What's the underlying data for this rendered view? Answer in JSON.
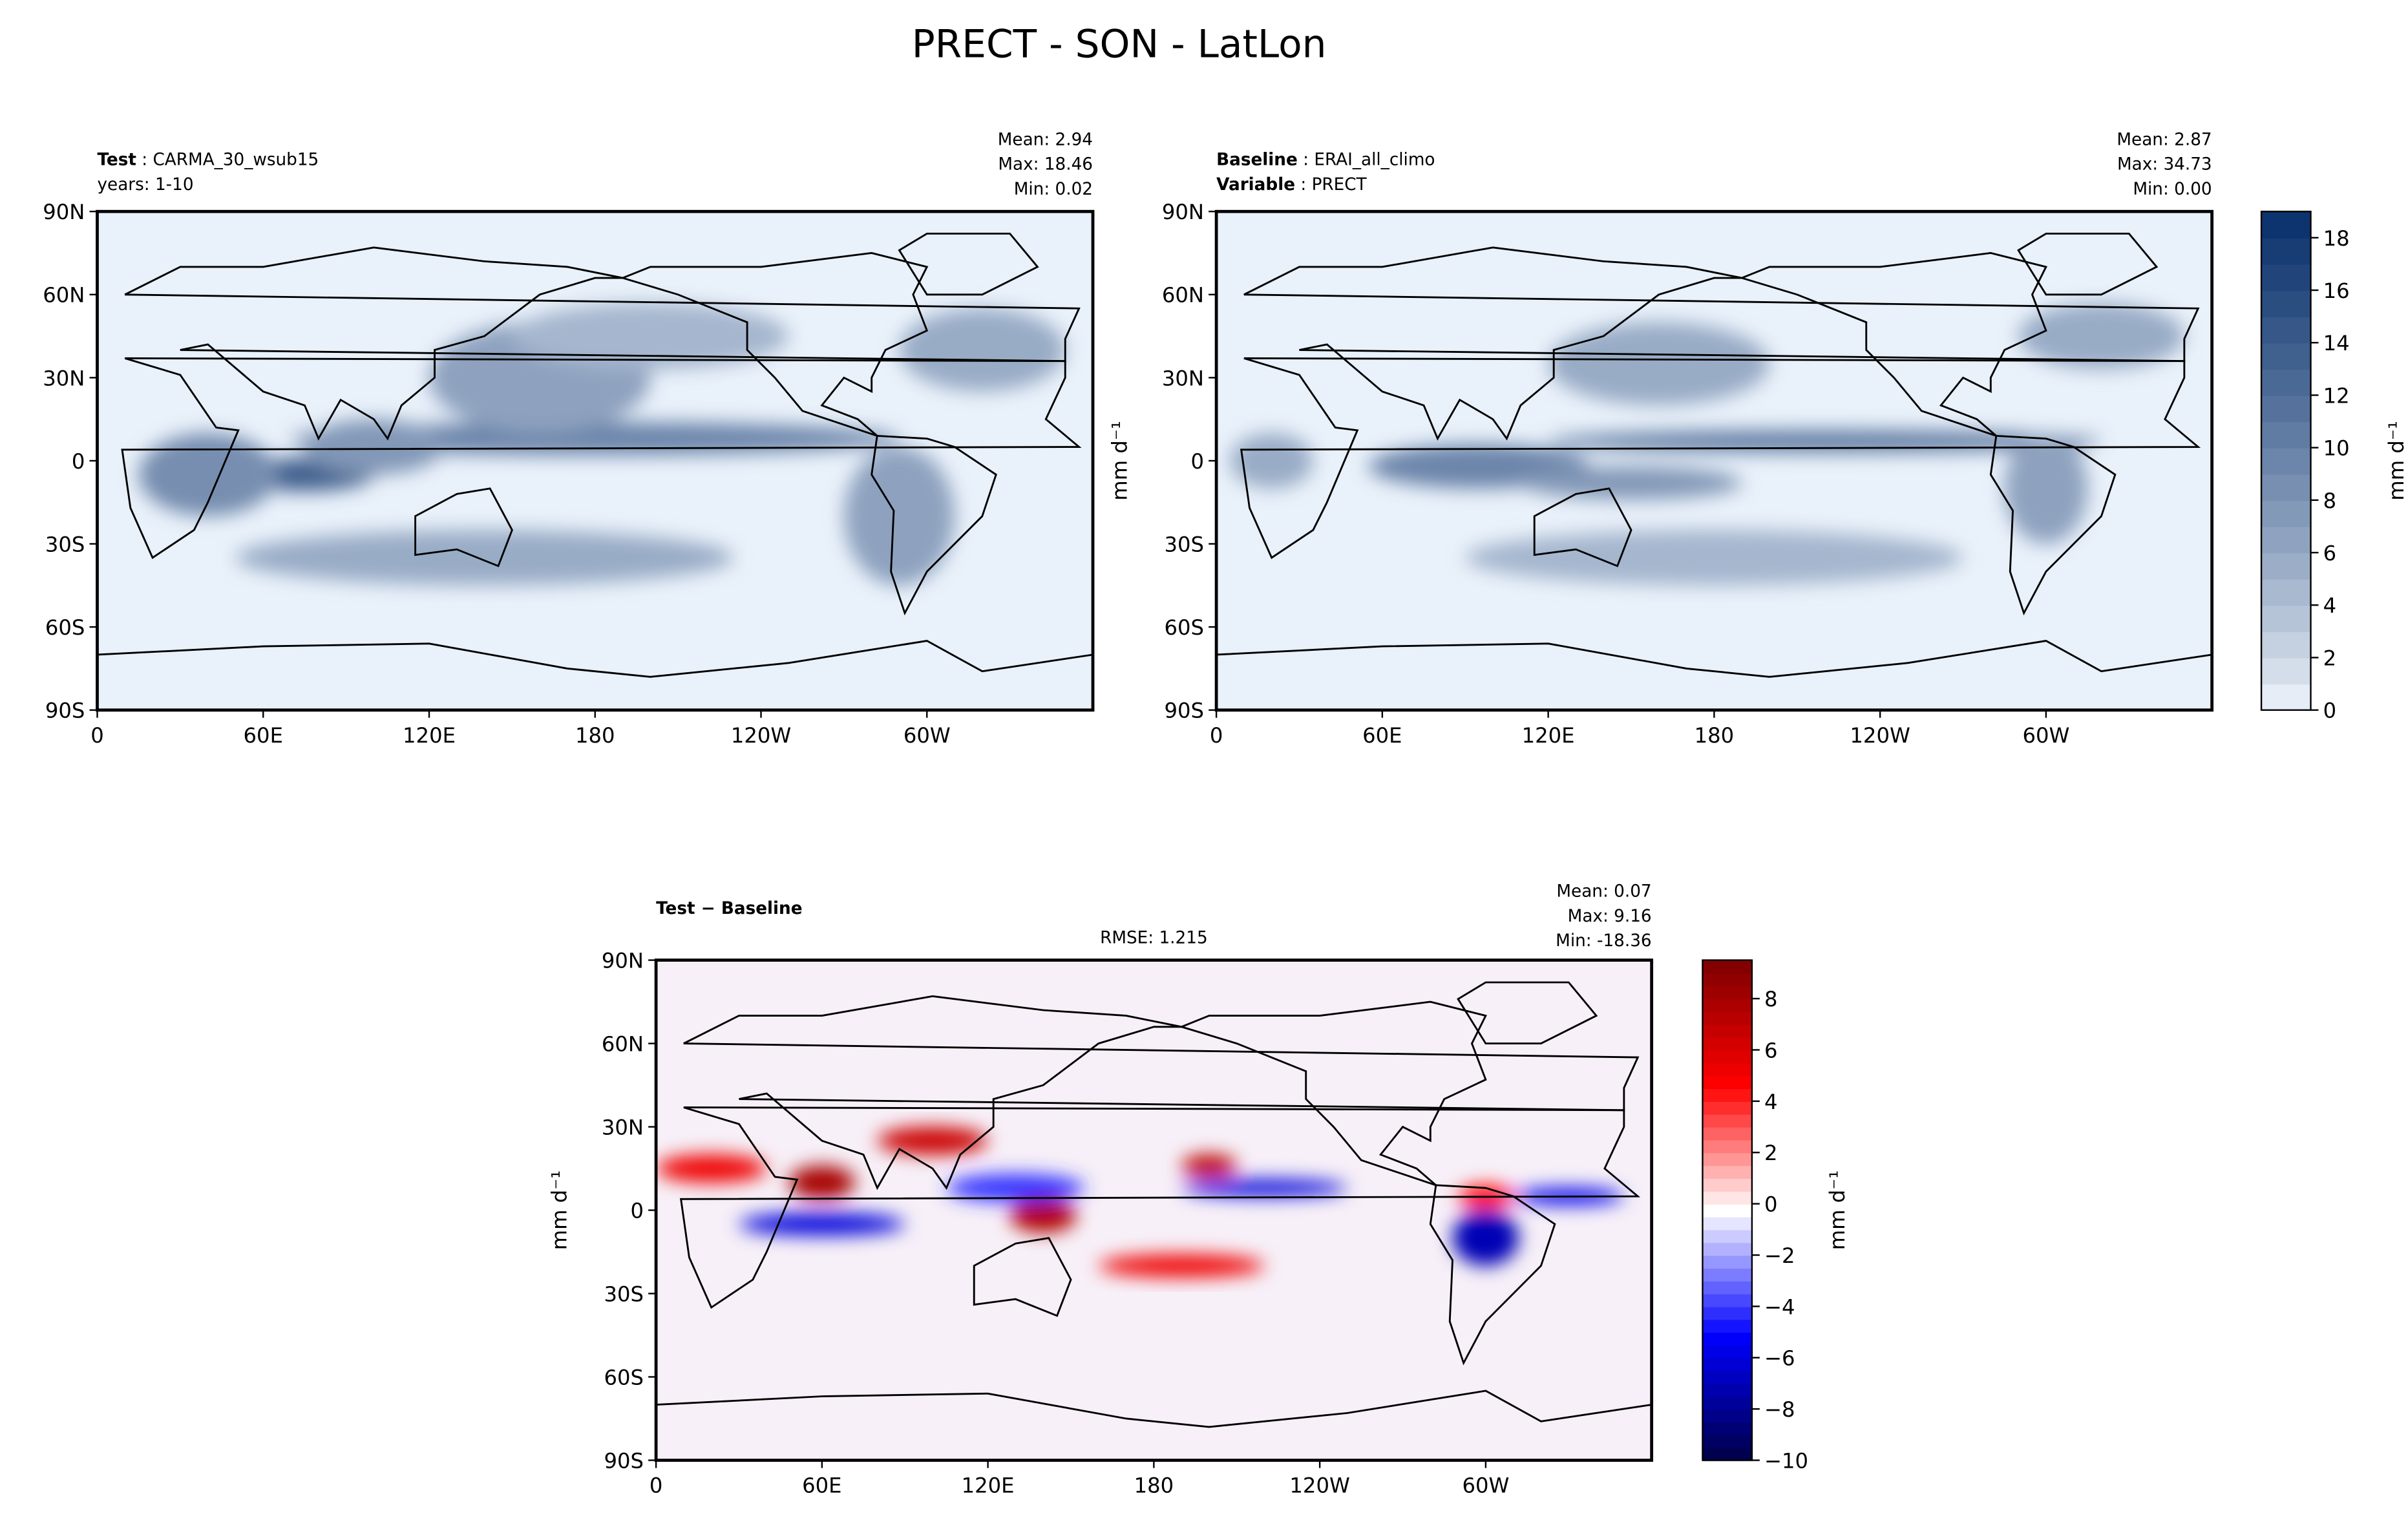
{
  "title": "PRECT - SON - LatLon",
  "chart_data": [
    {
      "type": "heatmap",
      "name": "test",
      "label_bold": "Test",
      "label_value": "CARMA_30_wsub15",
      "line2": "years: 1-10",
      "stats": [
        "Mean:  2.94",
        "Max: 18.46",
        "Min:  0.02"
      ],
      "xticks": [
        "0",
        "60E",
        "120E",
        "180",
        "120W",
        "60W"
      ],
      "yticks": [
        "90N",
        "60N",
        "30N",
        "0",
        "30S",
        "60S",
        "90S"
      ],
      "colormap": "Blues"
    },
    {
      "type": "heatmap",
      "name": "baseline",
      "label_bold": "Baseline",
      "label_value": "ERAI_all_climo",
      "line2_bold": "Variable",
      "line2_value": "PRECT",
      "stats": [
        "Mean:  2.87",
        "Max: 34.73",
        "Min:  0.00"
      ],
      "xticks": [
        "0",
        "60E",
        "120E",
        "180",
        "120W",
        "60W"
      ],
      "yticks": [
        "90N",
        "60N",
        "30N",
        "0",
        "30S",
        "60S",
        "90S"
      ],
      "ylabel": "mm d⁻¹",
      "colormap": "Blues",
      "colorbar": {
        "min": 0,
        "max": 19,
        "ticks": [
          "0",
          "2",
          "4",
          "6",
          "8",
          "10",
          "12",
          "14",
          "16",
          "18"
        ],
        "label": "mm d⁻¹"
      }
    },
    {
      "type": "heatmap",
      "name": "difference",
      "label_bold": "Test − Baseline",
      "rmse": "RMSE: 1.215",
      "stats": [
        "Mean:  0.07",
        "Max:  9.16",
        "Min: -18.36"
      ],
      "xticks": [
        "0",
        "60E",
        "120E",
        "180",
        "120W",
        "60W"
      ],
      "yticks": [
        "90N",
        "60N",
        "30N",
        "0",
        "30S",
        "60S",
        "90S"
      ],
      "ylabel": "mm d⁻¹",
      "colormap": "seismic",
      "colorbar": {
        "min": -10,
        "max": 9.5,
        "ticks": [
          "−10",
          "−8",
          "−6",
          "−4",
          "−2",
          "0",
          "2",
          "4",
          "6",
          "8"
        ],
        "label": "mm d⁻¹"
      }
    }
  ]
}
